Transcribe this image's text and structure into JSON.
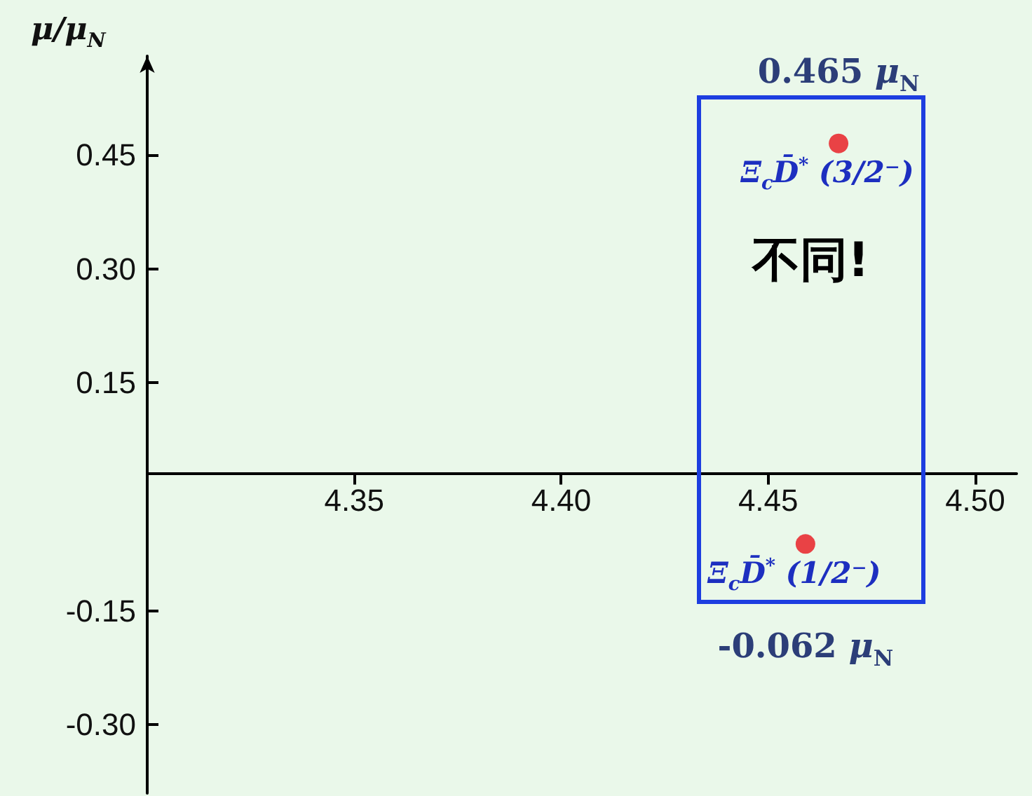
{
  "chart_data": {
    "type": "scatter",
    "ylabel": "μ/μ$_{N}$",
    "x": [
      4.467,
      4.459
    ],
    "series": [
      {
        "color": "#e8141b",
        "values": [
          0.465,
          -0.062
        ],
        "value_labels": [
          "0.465 μ$_{N}$",
          "-0.062 μ$_{N}$"
        ]
      }
    ],
    "xlim": [
      4.3,
      4.51
    ],
    "xticks": [
      {
        "value": 4.35,
        "label": "4.35"
      },
      {
        "value": 4.4,
        "label": "4.40"
      },
      {
        "value": 4.45,
        "label": "4.45"
      },
      {
        "value": 4.5,
        "label": "4.50"
      }
    ],
    "ylim": [
      -0.39,
      0.58
    ],
    "yticks": [
      {
        "value": -0.3,
        "label": "-0.30"
      },
      {
        "value": -0.15,
        "label": "-0.15"
      },
      {
        "value": 0.15,
        "label": "0.15"
      },
      {
        "value": 0.3,
        "label": "0.30"
      },
      {
        "value": 0.45,
        "label": "0.45"
      }
    ],
    "annotations": [
      {
        "text": "Ξ$_{c}$D̄$^{*}$ (3/2⁻)",
        "x": 4.467,
        "y": 0.465
      },
      {
        "text": "Ξ$_{c}$D̄$^{*}$ (1/2⁻)",
        "x": 4.459,
        "y": -0.062
      },
      "不同!"
    ],
    "grid": false,
    "marker": "circle"
  }
}
